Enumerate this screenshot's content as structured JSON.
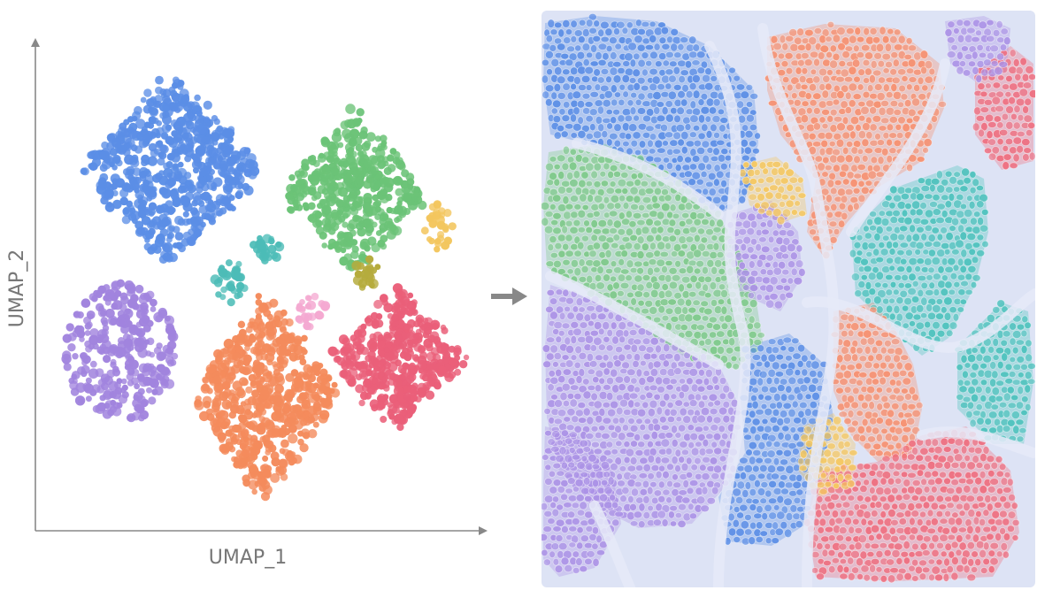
{
  "umap_plot": {
    "chart_data": {
      "type": "scatter",
      "title": "",
      "xlabel": "UMAP_1",
      "ylabel": "UMAP_2",
      "xlim": [
        0,
        100
      ],
      "ylim": [
        0,
        100
      ],
      "grid": false,
      "legend": "none",
      "clusters": [
        {
          "color": "#5b8ee6",
          "center": [
            30,
            75
          ],
          "spread": [
            22,
            20
          ],
          "shape": "diamond",
          "n": 620
        },
        {
          "color": "#6bc377",
          "center": [
            73,
            70
          ],
          "spread": [
            17,
            18
          ],
          "shape": "diamond",
          "n": 430
        },
        {
          "color": "#a184de",
          "center": [
            18,
            36
          ],
          "spread": [
            13,
            15
          ],
          "shape": "blob",
          "n": 300
        },
        {
          "color": "#f48b5c",
          "center": [
            52,
            27
          ],
          "spread": [
            18,
            22
          ],
          "shape": "diamond",
          "n": 560
        },
        {
          "color": "#ea5f79",
          "center": [
            83,
            35
          ],
          "spread": [
            17,
            15
          ],
          "shape": "diamond",
          "n": 430
        },
        {
          "color": "#f3c65e",
          "center": [
            93,
            63
          ],
          "spread": [
            3.5,
            5
          ],
          "shape": "blob",
          "n": 30
        },
        {
          "color": "#4cbcb7",
          "center": [
            44,
            51
          ],
          "spread": [
            4,
            4.5
          ],
          "shape": "blob",
          "n": 32
        },
        {
          "color": "#4cbcb7",
          "center": [
            52,
            58
          ],
          "spread": [
            3.5,
            3
          ],
          "shape": "blob",
          "n": 26
        },
        {
          "color": "#f4a9d1",
          "center": [
            63,
            45
          ],
          "spread": [
            4,
            3.5
          ],
          "shape": "blob",
          "n": 24
        },
        {
          "color": "#b5ab3d",
          "center": [
            76,
            53
          ],
          "spread": [
            3,
            3.5
          ],
          "shape": "blob",
          "n": 20
        }
      ]
    }
  },
  "spatial_map": {
    "palette": {
      "blue": "#5b8ee6",
      "green": "#7ec98a",
      "orange": "#f69070",
      "purple": "#ab92e6",
      "teal": "#4ec2bd",
      "red": "#ee6f80",
      "yellow": "#f5c75f",
      "background": "#dde3f5"
    }
  }
}
